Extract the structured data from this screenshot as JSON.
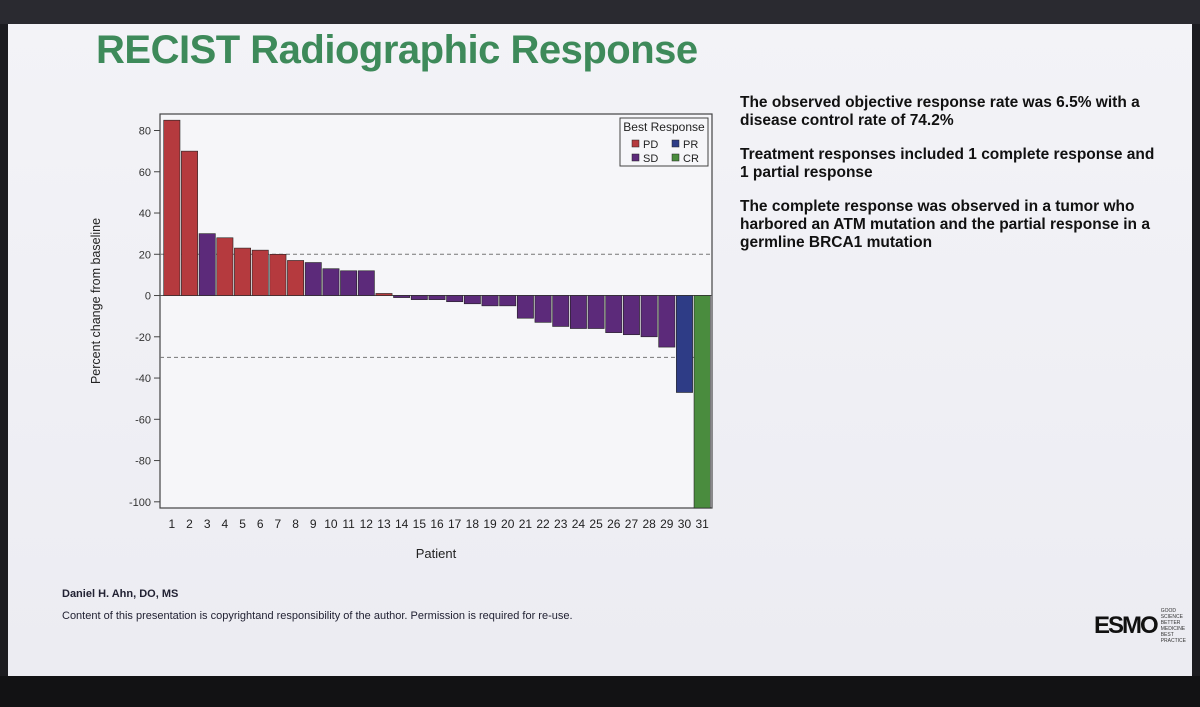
{
  "slide": {
    "title": "RECIST Radiographic Response",
    "bullets": [
      "The observed objective response rate was 6.5% with a disease control rate of 74.2%",
      "Treatment responses included 1 complete response and 1 partial response",
      "The complete response was observed in a tumor who harbored an ATM mutation and the partial response in a germline BRCA1 mutation"
    ],
    "author": "Daniel H. Ahn, DO, MS",
    "copyright": "Content of this presentation is copyrightand responsibility of the author. Permission is required for re-use.",
    "logo": {
      "word": "ESMO",
      "tagline": "GOOD SCIENCE BETTER MEDICINE BEST PRACTICE"
    }
  },
  "chart_data": {
    "type": "bar",
    "xlabel": "Patient",
    "ylabel": "Percent change from baseline",
    "ylim": [
      -100,
      85
    ],
    "yticks": [
      80,
      60,
      40,
      20,
      0,
      -20,
      -40,
      -60,
      -80,
      -100
    ],
    "categories": [
      "1",
      "2",
      "3",
      "4",
      "5",
      "6",
      "7",
      "8",
      "9",
      "10",
      "11",
      "12",
      "13",
      "14",
      "15",
      "16",
      "17",
      "18",
      "19",
      "20",
      "21",
      "22",
      "23",
      "24",
      "25",
      "26",
      "27",
      "28",
      "29",
      "30",
      "31"
    ],
    "values": [
      85,
      70,
      30,
      28,
      23,
      22,
      20,
      17,
      16,
      13,
      12,
      12,
      1,
      -1,
      -2,
      -2,
      -3,
      -4,
      -5,
      -5,
      -11,
      -13,
      -15,
      -16,
      -16,
      -18,
      -19,
      -20,
      -25,
      -47,
      -103
    ],
    "response": [
      "PD",
      "PD",
      "SD",
      "PD",
      "PD",
      "PD",
      "PD",
      "PD",
      "SD",
      "SD",
      "SD",
      "SD",
      "PD",
      "SD",
      "SD",
      "SD",
      "SD",
      "SD",
      "SD",
      "SD",
      "SD",
      "SD",
      "SD",
      "SD",
      "SD",
      "SD",
      "SD",
      "SD",
      "SD",
      "PR",
      "CR"
    ],
    "reference_lines": [
      20,
      -30
    ],
    "legend": {
      "title": "Best Response",
      "position": "top-right",
      "entries": [
        {
          "key": "PD",
          "label": "PD",
          "color": "#b53a3e"
        },
        {
          "key": "PR",
          "label": "PR",
          "color": "#2e3c86"
        },
        {
          "key": "SD",
          "label": "SD",
          "color": "#5c2a7a"
        },
        {
          "key": "CR",
          "label": "CR",
          "color": "#4a8c3e"
        }
      ]
    }
  }
}
